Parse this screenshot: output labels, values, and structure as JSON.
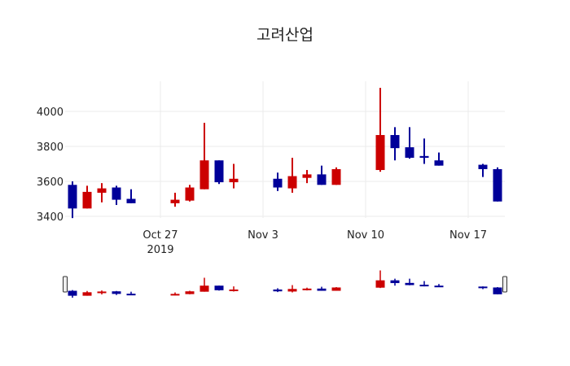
{
  "title": "고려산업",
  "colors": {
    "increasing": "#cc0000",
    "decreasing": "#000099",
    "grid": "#ebebeb",
    "text": "#222222"
  },
  "chart_data": {
    "type": "candlestick",
    "title": "고려산업",
    "xlabel": "",
    "ylabel": "",
    "ylim": [
      3370,
      4190
    ],
    "yticks": [
      3400,
      3600,
      3800,
      4000
    ],
    "xticks": [
      {
        "date": "2019-10-27",
        "label": "Oct 27",
        "sublabel": "2019"
      },
      {
        "date": "2019-11-03",
        "label": "Nov 3",
        "sublabel": ""
      },
      {
        "date": "2019-11-10",
        "label": "Nov 10",
        "sublabel": ""
      },
      {
        "date": "2019-11-17",
        "label": "Nov 17",
        "sublabel": ""
      }
    ],
    "grid": true,
    "rangeslider": true,
    "series": [
      {
        "date": "2019-10-21",
        "open": 3580,
        "high": 3600,
        "low": 3390,
        "close": 3445
      },
      {
        "date": "2019-10-22",
        "open": 3445,
        "high": 3575,
        "low": 3445,
        "close": 3540
      },
      {
        "date": "2019-10-23",
        "open": 3535,
        "high": 3590,
        "low": 3480,
        "close": 3560
      },
      {
        "date": "2019-10-24",
        "open": 3565,
        "high": 3575,
        "low": 3465,
        "close": 3495
      },
      {
        "date": "2019-10-25",
        "open": 3500,
        "high": 3555,
        "low": 3475,
        "close": 3475
      },
      {
        "date": "2019-10-28",
        "open": 3475,
        "high": 3535,
        "low": 3455,
        "close": 3495
      },
      {
        "date": "2019-10-29",
        "open": 3490,
        "high": 3580,
        "low": 3485,
        "close": 3565
      },
      {
        "date": "2019-10-30",
        "open": 3555,
        "high": 3935,
        "low": 3555,
        "close": 3720
      },
      {
        "date": "2019-10-31",
        "open": 3720,
        "high": 3720,
        "low": 3585,
        "close": 3595
      },
      {
        "date": "2019-11-01",
        "open": 3595,
        "high": 3700,
        "low": 3560,
        "close": 3615
      },
      {
        "date": "2019-11-04",
        "open": 3615,
        "high": 3650,
        "low": 3545,
        "close": 3565
      },
      {
        "date": "2019-11-05",
        "open": 3560,
        "high": 3735,
        "low": 3535,
        "close": 3630
      },
      {
        "date": "2019-11-06",
        "open": 3620,
        "high": 3665,
        "low": 3590,
        "close": 3640
      },
      {
        "date": "2019-11-07",
        "open": 3640,
        "high": 3690,
        "low": 3580,
        "close": 3580
      },
      {
        "date": "2019-11-08",
        "open": 3580,
        "high": 3680,
        "low": 3580,
        "close": 3670
      },
      {
        "date": "2019-11-11",
        "open": 3665,
        "high": 4135,
        "low": 3655,
        "close": 3865
      },
      {
        "date": "2019-11-12",
        "open": 3865,
        "high": 3910,
        "low": 3720,
        "close": 3790
      },
      {
        "date": "2019-11-13",
        "open": 3795,
        "high": 3910,
        "low": 3730,
        "close": 3735
      },
      {
        "date": "2019-11-14",
        "open": 3745,
        "high": 3845,
        "low": 3700,
        "close": 3735
      },
      {
        "date": "2019-11-15",
        "open": 3720,
        "high": 3765,
        "low": 3690,
        "close": 3690
      },
      {
        "date": "2019-11-18",
        "open": 3695,
        "high": 3700,
        "low": 3625,
        "close": 3670
      },
      {
        "date": "2019-11-19",
        "open": 3670,
        "high": 3680,
        "low": 3485,
        "close": 3485
      }
    ]
  }
}
